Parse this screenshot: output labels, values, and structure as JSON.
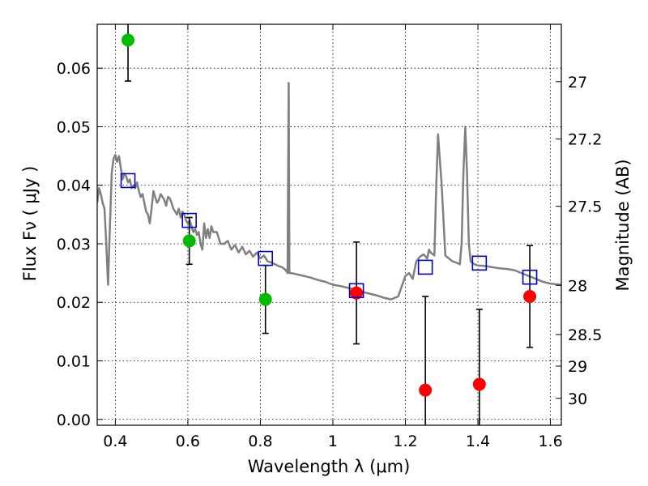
{
  "chart_data": {
    "type": "scatter",
    "title": "",
    "xlabel": "Wavelength  λ (μm)",
    "ylabel": "Flux  Fν  ( μJy )",
    "y2label": "Magnitude (AB)",
    "xlim": [
      0.35,
      1.63
    ],
    "ylim": [
      -0.001,
      0.0675
    ],
    "grid": true,
    "grid_style": "dotted",
    "xticks": [
      0.4,
      0.6,
      0.8,
      1.0,
      1.2,
      1.4,
      1.6
    ],
    "xtick_labels": [
      "0.4",
      "0.6",
      "0.8",
      "1",
      "1.2",
      "1.4",
      "1.6"
    ],
    "yticks": [
      0.0,
      0.01,
      0.02,
      0.03,
      0.04,
      0.05,
      0.06
    ],
    "ytick_labels": [
      "0.00",
      "0.01",
      "0.02",
      "0.03",
      "0.04",
      "0.05",
      "0.06"
    ],
    "y2ticks": [
      {
        "label": "27",
        "flux": 0.0577
      },
      {
        "label": "27.2",
        "flux": 0.0479
      },
      {
        "label": "27.5",
        "flux": 0.0364
      },
      {
        "label": "28",
        "flux": 0.0229
      },
      {
        "label": "28.5",
        "flux": 0.0145
      },
      {
        "label": "29",
        "flux": 0.0091
      },
      {
        "label": "30",
        "flux": 0.0036
      }
    ],
    "series": [
      {
        "type": "line",
        "color": "#808080",
        "x": [
          0.35,
          0.355,
          0.36,
          0.365,
          0.37,
          0.375,
          0.38,
          0.385,
          0.39,
          0.395,
          0.4,
          0.405,
          0.41,
          0.415,
          0.42,
          0.425,
          0.43,
          0.435,
          0.44,
          0.445,
          0.45,
          0.455,
          0.46,
          0.465,
          0.47,
          0.475,
          0.48,
          0.485,
          0.49,
          0.495,
          0.5,
          0.505,
          0.51,
          0.515,
          0.52,
          0.525,
          0.53,
          0.535,
          0.54,
          0.545,
          0.55,
          0.555,
          0.56,
          0.565,
          0.57,
          0.575,
          0.58,
          0.585,
          0.59,
          0.595,
          0.6,
          0.605,
          0.61,
          0.615,
          0.62,
          0.625,
          0.63,
          0.635,
          0.64,
          0.645,
          0.65,
          0.655,
          0.66,
          0.665,
          0.67,
          0.68,
          0.69,
          0.7,
          0.71,
          0.72,
          0.73,
          0.74,
          0.75,
          0.76,
          0.77,
          0.78,
          0.79,
          0.8,
          0.81,
          0.82,
          0.83,
          0.84,
          0.85,
          0.86,
          0.87,
          0.875,
          0.878,
          0.88,
          0.882,
          0.885,
          0.9,
          0.92,
          0.94,
          0.96,
          0.98,
          1.0,
          1.02,
          1.04,
          1.06,
          1.08,
          1.1,
          1.12,
          1.14,
          1.16,
          1.18,
          1.2,
          1.21,
          1.22,
          1.23,
          1.24,
          1.25,
          1.26,
          1.265,
          1.27,
          1.28,
          1.285,
          1.29,
          1.3,
          1.31,
          1.32,
          1.33,
          1.34,
          1.35,
          1.355,
          1.36,
          1.365,
          1.37,
          1.375,
          1.38,
          1.39,
          1.4,
          1.42,
          1.44,
          1.46,
          1.48,
          1.5,
          1.52,
          1.54,
          1.56,
          1.58,
          1.6,
          1.63
        ],
        "y": [
          0.037,
          0.0395,
          0.0385,
          0.037,
          0.036,
          0.03,
          0.023,
          0.033,
          0.042,
          0.0445,
          0.0452,
          0.044,
          0.045,
          0.043,
          0.041,
          0.042,
          0.0415,
          0.0405,
          0.041,
          0.0395,
          0.04,
          0.0395,
          0.0405,
          0.039,
          0.038,
          0.0385,
          0.037,
          0.0355,
          0.035,
          0.0335,
          0.036,
          0.039,
          0.038,
          0.037,
          0.0375,
          0.0385,
          0.038,
          0.0375,
          0.0365,
          0.038,
          0.0378,
          0.037,
          0.036,
          0.0355,
          0.035,
          0.036,
          0.0345,
          0.0355,
          0.035,
          0.034,
          0.0335,
          0.034,
          0.033,
          0.032,
          0.0325,
          0.0315,
          0.032,
          0.03,
          0.029,
          0.0335,
          0.031,
          0.0325,
          0.031,
          0.033,
          0.032,
          0.032,
          0.03,
          0.03,
          0.0305,
          0.029,
          0.0298,
          0.0285,
          0.0295,
          0.0282,
          0.0288,
          0.0278,
          0.0285,
          0.0275,
          0.028,
          0.027,
          0.0268,
          0.0265,
          0.0262,
          0.026,
          0.0255,
          0.025,
          0.0575,
          0.025,
          0.025,
          0.025,
          0.0248,
          0.0245,
          0.0242,
          0.0238,
          0.0235,
          0.023,
          0.0228,
          0.0225,
          0.0222,
          0.0218,
          0.0215,
          0.0212,
          0.0208,
          0.0205,
          0.021,
          0.0245,
          0.025,
          0.024,
          0.027,
          0.0278,
          0.0282,
          0.0275,
          0.029,
          0.0285,
          0.028,
          0.04,
          0.0487,
          0.04,
          0.028,
          0.0275,
          0.027,
          0.0268,
          0.0265,
          0.03,
          0.042,
          0.05,
          0.042,
          0.03,
          0.027,
          0.0265,
          0.0263,
          0.0262,
          0.026,
          0.0258,
          0.0257,
          0.0255,
          0.025,
          0.0245,
          0.024,
          0.0235,
          0.0232,
          0.023
        ]
      },
      {
        "type": "errorbar",
        "marker": "circle",
        "color": "#00bb00",
        "x": [
          0.435,
          0.604,
          0.814
        ],
        "y": [
          0.0648,
          0.0305,
          0.0205
        ],
        "yerr": [
          0.007,
          0.004,
          0.0058
        ]
      },
      {
        "type": "errorbar",
        "marker": "circle",
        "color": "#ff0000",
        "x": [
          1.065,
          1.255,
          1.404,
          1.543
        ],
        "y": [
          0.0216,
          0.005,
          0.006,
          0.021
        ],
        "yerr": [
          0.0087,
          0.016,
          0.0128,
          0.0087
        ]
      },
      {
        "type": "scatter",
        "marker": "square-open",
        "color": "#0000cc",
        "x": [
          0.435,
          0.604,
          0.814,
          1.065,
          1.255,
          1.404,
          1.543
        ],
        "y": [
          0.0408,
          0.034,
          0.0275,
          0.022,
          0.026,
          0.0267,
          0.0243
        ]
      }
    ]
  }
}
